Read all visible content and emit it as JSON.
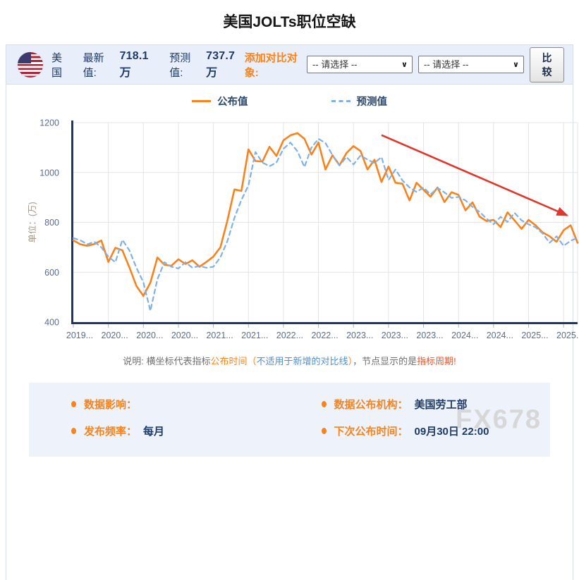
{
  "page": {
    "title": "美国JOLTs职位空缺"
  },
  "header": {
    "country": "美国",
    "latest_label": "最新值:",
    "latest_value": "718.1万",
    "forecast_label": "预测值:",
    "forecast_value": "737.7万",
    "compare_label": "添加对比对象:",
    "select_placeholder_1": "-- 请选择 --",
    "select_placeholder_2": "-- 请选择 --",
    "compare_button_label": "比较"
  },
  "chart_data": {
    "type": "line",
    "title": "美国JOLTs职位空缺",
    "xlabel": "",
    "ylabel": "单位：(万)",
    "ylim": [
      400,
      1200
    ],
    "yticks": [
      400,
      600,
      800,
      1000,
      1200
    ],
    "grid": true,
    "legend_position": "top",
    "x_tick_labels": [
      "2019...",
      "2020...",
      "2020...",
      "2020...",
      "2021...",
      "2021...",
      "2022...",
      "2022...",
      "2023...",
      "2023...",
      "2023...",
      "2024...",
      "2024...",
      "2025...",
      "2025..."
    ],
    "x_label_every": 5,
    "series": [
      {
        "name": "公布值",
        "color": "#f8831d",
        "line_style": "solid",
        "values": [
          728,
          712,
          706,
          713,
          727,
          641,
          698,
          688,
          620,
          545,
          505,
          558,
          659,
          630,
          626,
          652,
          633,
          648,
          622,
          641,
          663,
          700,
          808,
          932,
          926,
          1093,
          1046,
          1044,
          1103,
          1066,
          1129,
          1149,
          1158,
          1135,
          1072,
          1120,
          1012,
          1069,
          1029,
          1078,
          1106,
          1086,
          1012,
          1051,
          962,
          1024,
          959,
          955,
          888,
          959,
          931,
          903,
          940,
          881,
          921,
          910,
          848,
          880,
          823,
          805,
          810,
          781,
          840,
          808,
          774,
          810,
          788,
          760,
          744,
          722,
          768,
          788,
          718.1
        ]
      },
      {
        "name": "预测值",
        "color": "#7fb1e8",
        "line_style": "dashed",
        "values": [
          737,
          728,
          712,
          722,
          700,
          662,
          640,
          730,
          688,
          618,
          560,
          445,
          572,
          640,
          622,
          615,
          640,
          618,
          625,
          618,
          622,
          660,
          725,
          818,
          890,
          948,
          1082,
          1040,
          1025,
          1040,
          1095,
          1120,
          1085,
          1022,
          1100,
          1135,
          1118,
          1070,
          1028,
          1062,
          1032,
          1068,
          1052,
          1038,
          1062,
          970,
          1012,
          968,
          940,
          922,
          940,
          912,
          938,
          920,
          898,
          902,
          888,
          862,
          842,
          815,
          792,
          822,
          802,
          838,
          808,
          792,
          780,
          756,
          718,
          744,
          706,
          726,
          737.7
        ]
      }
    ],
    "annotation_arrow": {
      "color": "#e0372c",
      "from_index": 44,
      "from_value": 1150,
      "to_index": 70.5,
      "to_value": 828
    }
  },
  "note": {
    "segments": [
      {
        "text": "说明: 横坐标代表指标",
        "color": "gray"
      },
      {
        "text": "公布时间",
        "color": "orange"
      },
      {
        "text": "（",
        "color": "orange"
      },
      {
        "text": "不适用于新增的对比线",
        "color": "blue"
      },
      {
        "text": "）",
        "color": "orange"
      },
      {
        "text": "，节点显示的是",
        "color": "gray"
      },
      {
        "text": "指标周期!",
        "color": "red"
      }
    ]
  },
  "info_panel": {
    "items": [
      {
        "label": "数据影响：",
        "value": ""
      },
      {
        "label": "数据公布机构：",
        "value": "美国劳工部"
      },
      {
        "label": "发布频率：",
        "value": "每月"
      },
      {
        "label": "下次公布时间：",
        "value": "09月30日 22:00"
      }
    ],
    "watermark": "FX678"
  },
  "colors": {
    "accent_orange": "#f8831d",
    "forecast_blue": "#7fb1e8",
    "arrow_red": "#e0372c",
    "axis_navy": "#1c3766",
    "tick_text": "#5a6d8f",
    "grid_line": "#e4e4e4",
    "navy_text": "#1e3a68",
    "header_bg": "#e9effa",
    "panel_bg": "#eef3fb",
    "ylabel_text": "#a3978a"
  }
}
